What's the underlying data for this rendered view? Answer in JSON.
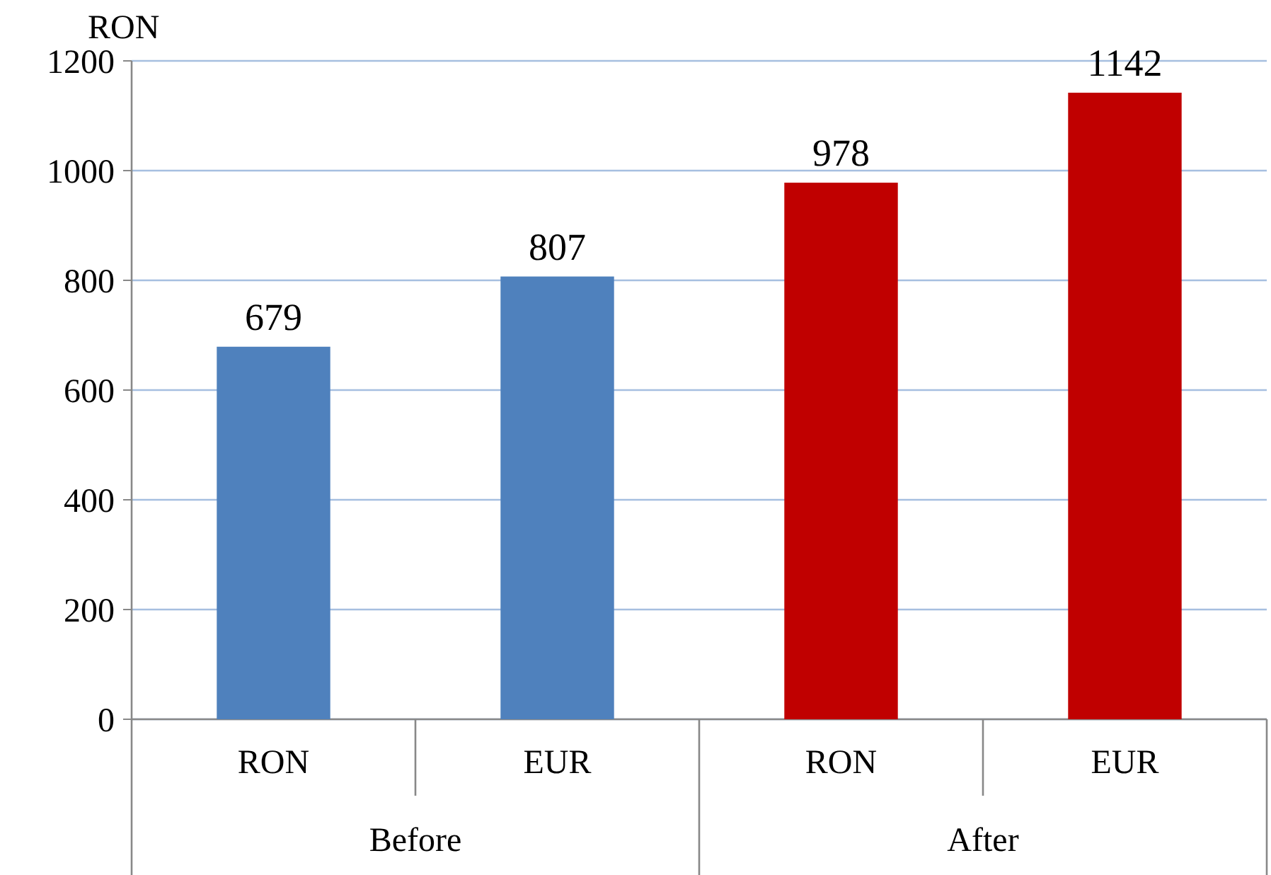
{
  "chart_data": {
    "type": "bar",
    "ylabel": "RON",
    "categories": [
      "RON",
      "EUR",
      "RON",
      "EUR"
    ],
    "values": [
      679,
      807,
      978,
      1142
    ],
    "colors": [
      "#4f81bd",
      "#4f81bd",
      "#c00000",
      "#c00000"
    ],
    "ylim": [
      0,
      1200
    ],
    "yticks": [
      0,
      200,
      400,
      600,
      800,
      1000,
      1200
    ],
    "grid": "y",
    "data_labels": true,
    "annotations": [
      "Before",
      "After"
    ]
  }
}
